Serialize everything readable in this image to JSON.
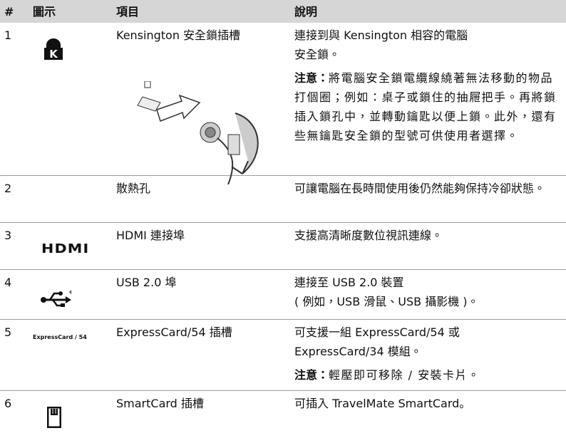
{
  "header": [
    "#",
    "圖示",
    "項目",
    "說明"
  ],
  "rows": [
    {
      "number": "1",
      "item": "Kensington 安全鎖插槽",
      "description": [
        "連接到與 Kensington 相容的電腦",
        "安全鎖。"
      ],
      "note_label": "注意：",
      "note": "將電腦安全鎖電纜線繞著無法移動的物品打個圈；例如：桌子或鎖住的抽屜把手。再將鎖插入鎖孔中，並轉動鑰匙以便上鎖。此外，還有些無鑰匙安全鎖的型號可供使用者選擇。"
    },
    {
      "number": "2",
      "item": "散熱孔",
      "description": [
        "可讓電腦在長時間使用後仍然能夠保持冷卻狀態。"
      ]
    },
    {
      "number": "3",
      "icon_label": "HDMI",
      "item": "HDMI 連接埠",
      "description": [
        "支援高清晰度數位視訊連線。"
      ]
    },
    {
      "number": "4",
      "item": "USB 2.0 埠",
      "description": [
        "連接至 USB 2.0 裝置",
        "( 例如，USB 滑鼠、USB 攝影機 )。"
      ]
    },
    {
      "number": "5",
      "icon_label": "ExpressCard / 54",
      "item": "ExpressCard/54 插槽",
      "description": [
        "可支援一組 ExpressCard/54 或",
        "ExpressCard/34 模組。"
      ],
      "note_label": "注意：",
      "note": "輕壓即可移除 / 安裝卡片。"
    },
    {
      "number": "6",
      "item": "SmartCard 插槽",
      "description": [
        "可插入 TravelMate SmartCard。"
      ]
    }
  ]
}
